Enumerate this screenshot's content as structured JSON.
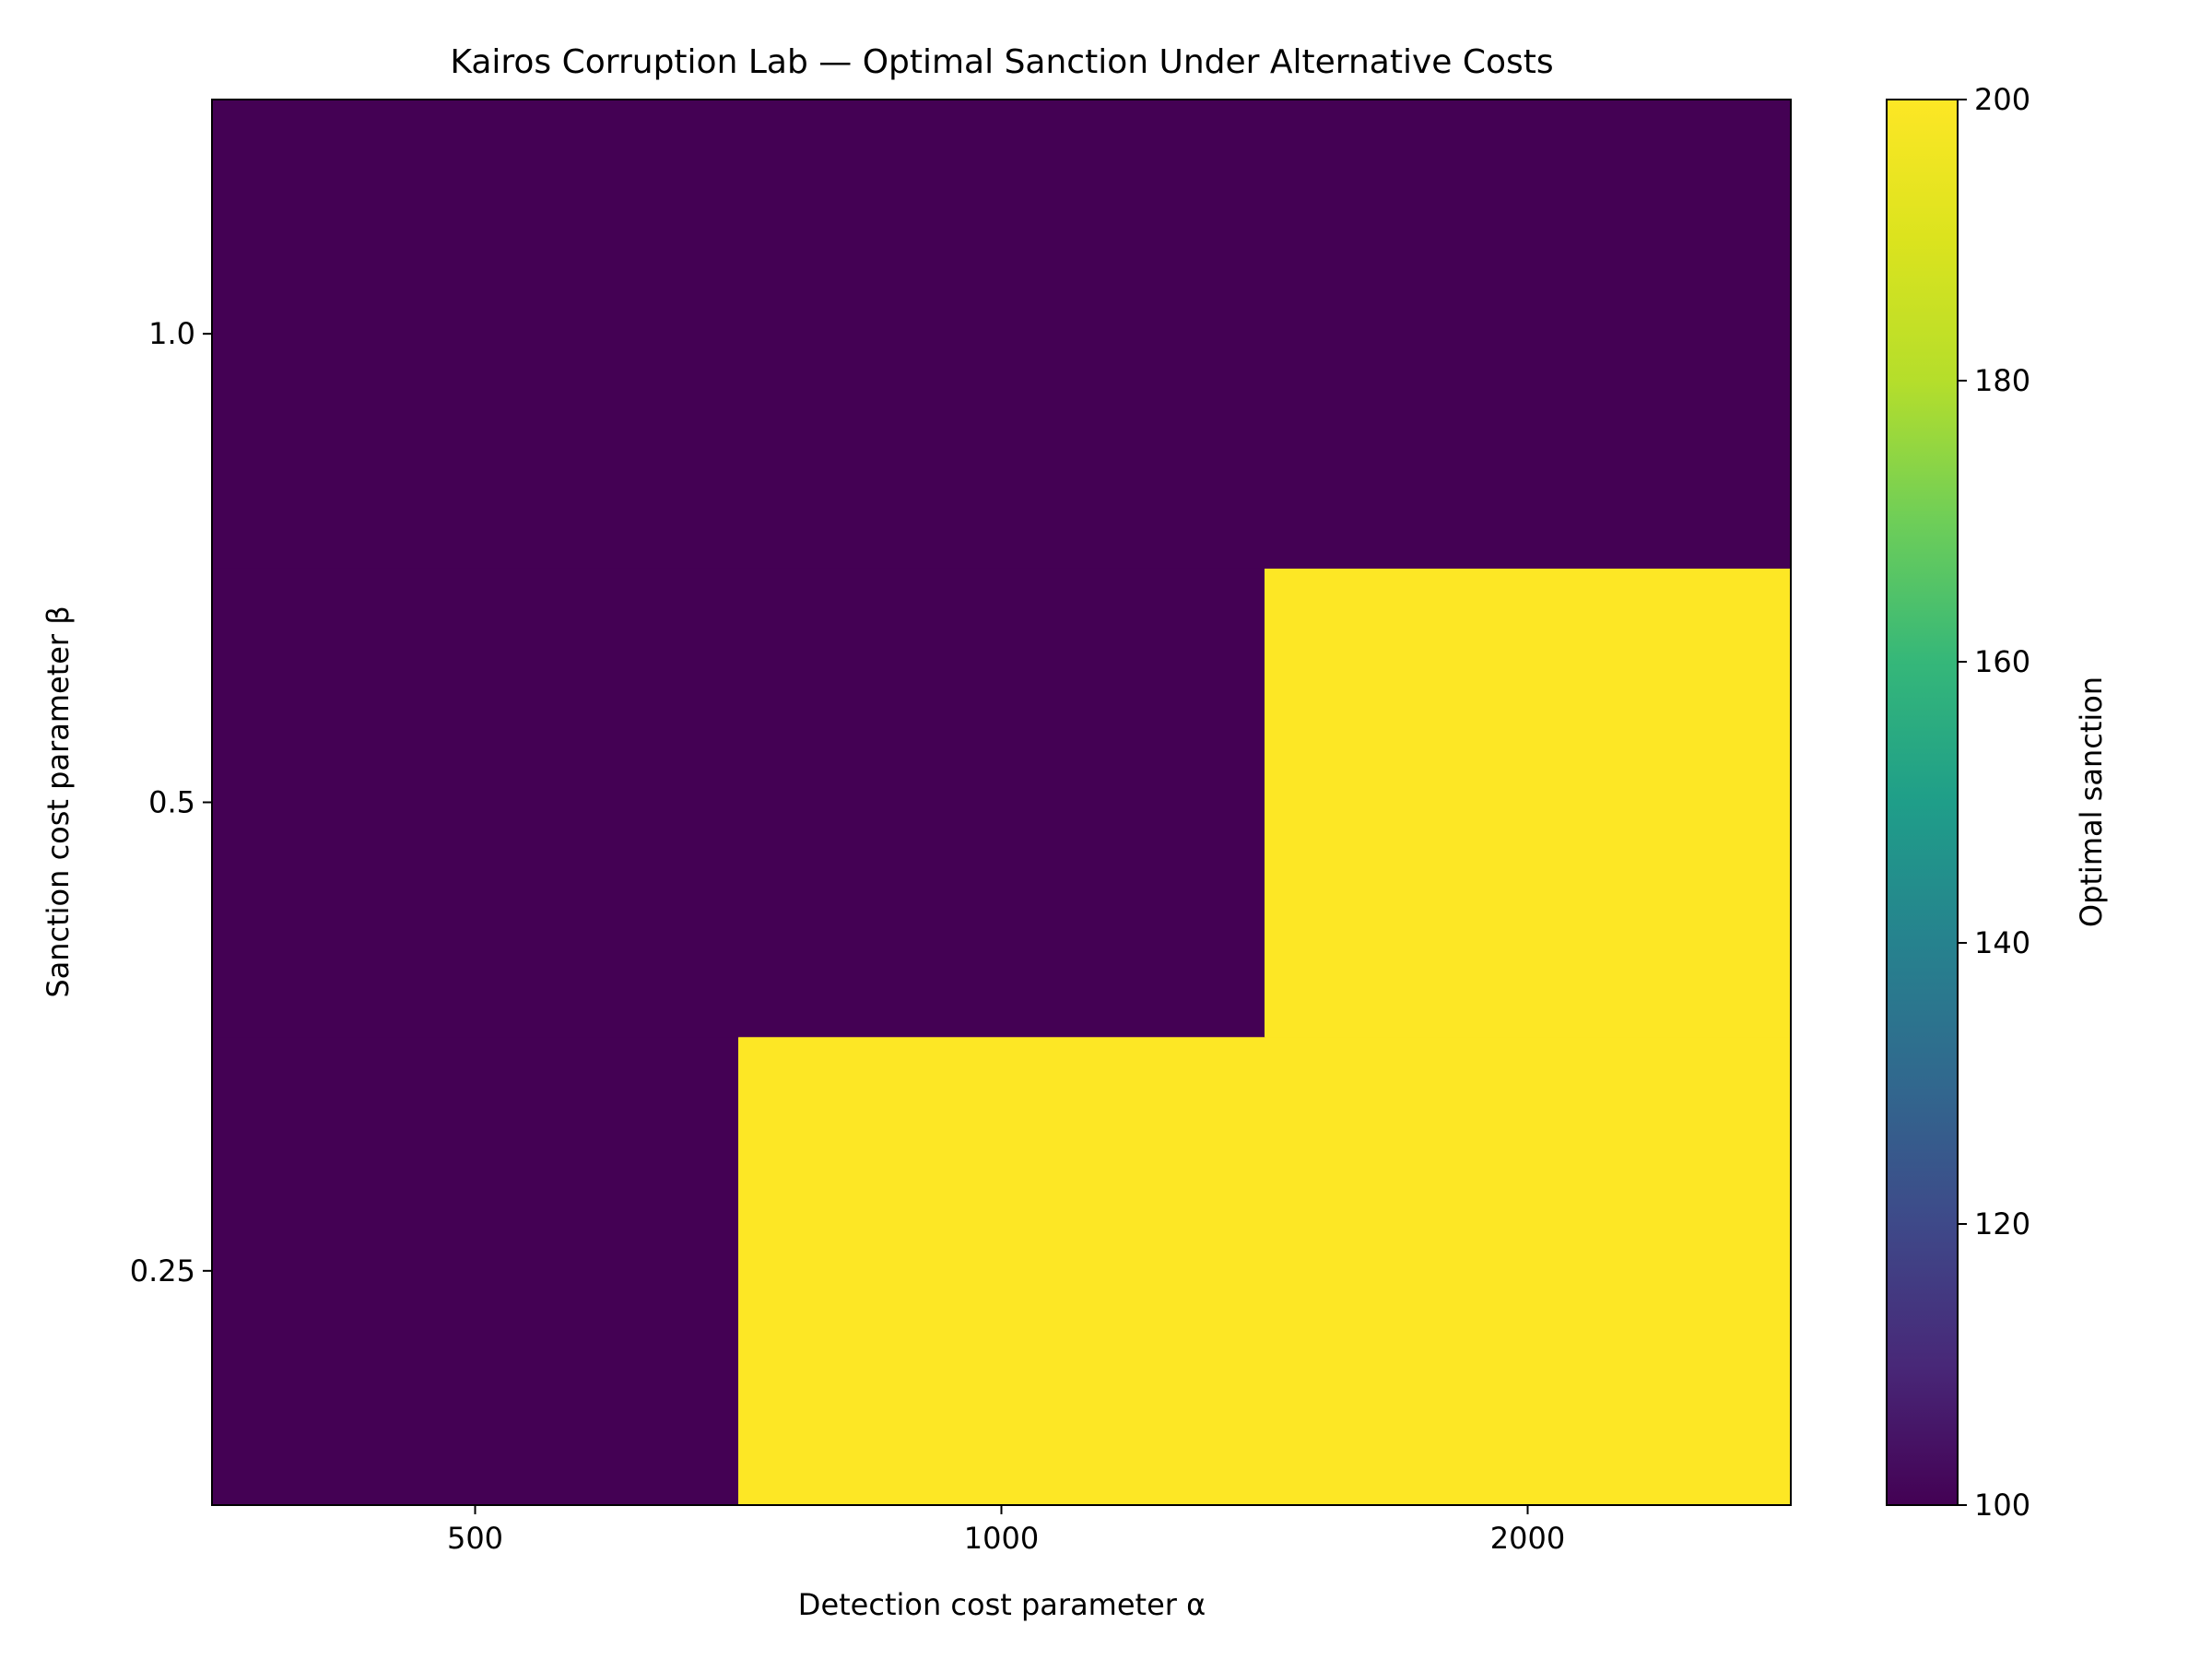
{
  "chart_data": {
    "type": "heatmap",
    "title": "Kairos Corruption Lab — Optimal Sanction Under Alternative Costs",
    "xlabel": "Detection cost parameter α",
    "ylabel": "Sanction cost parameter β",
    "x_categories": [
      "500",
      "1000",
      "2000"
    ],
    "y_categories": [
      "0.25",
      "0.5",
      "1.0"
    ],
    "values": [
      [
        100,
        200,
        200
      ],
      [
        100,
        100,
        200
      ],
      [
        100,
        100,
        100
      ]
    ],
    "value_rows_order": "y_categories order (0.25, 0.5, 1.0)",
    "colorbar": {
      "label": "Optimal sanction",
      "min": 100,
      "max": 200,
      "ticks": [
        "100",
        "120",
        "140",
        "160",
        "180",
        "200"
      ],
      "colormap": "viridis",
      "low_color": "#440154",
      "high_color": "#fde725"
    },
    "grid": false,
    "legend": "none"
  }
}
